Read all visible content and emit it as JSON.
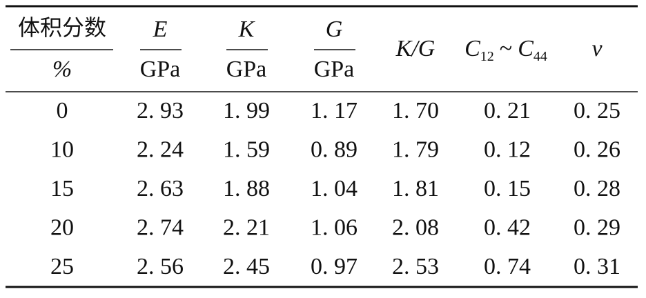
{
  "table": {
    "header": {
      "fraction": {
        "top": "体积分数",
        "bottom": "%"
      },
      "E": {
        "top": "E",
        "bottom": "GPa"
      },
      "K": {
        "top": "K",
        "bottom": "GPa"
      },
      "G": {
        "top": "G",
        "bottom": "GPa"
      },
      "KG": "K/G",
      "C": [
        "C",
        "12",
        "~",
        "C",
        "44"
      ],
      "v": "v"
    },
    "rows": [
      [
        "0",
        "2. 93",
        "1. 99",
        "1. 17",
        "1. 70",
        "0. 21",
        "0. 25"
      ],
      [
        "10",
        "2. 24",
        "1. 59",
        "0. 89",
        "1. 79",
        "0. 12",
        "0. 26"
      ],
      [
        "15",
        "2. 63",
        "1. 88",
        "1. 04",
        "1. 81",
        "0. 15",
        "0. 28"
      ],
      [
        "20",
        "2. 74",
        "2. 21",
        "1. 06",
        "2. 08",
        "0. 42",
        "0. 29"
      ],
      [
        "25",
        "2. 56",
        "2. 45",
        "0. 97",
        "2. 53",
        "0. 74",
        "0. 31"
      ]
    ]
  }
}
